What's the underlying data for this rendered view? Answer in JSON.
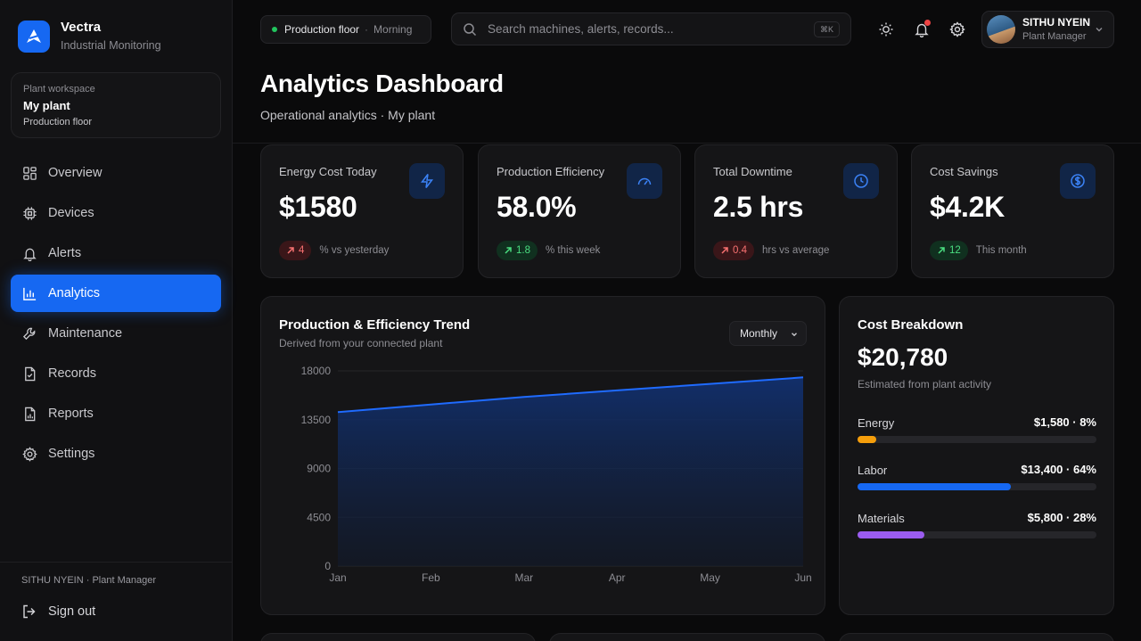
{
  "brand": {
    "name": "Vectra",
    "subtitle": "Industrial Monitoring"
  },
  "workspace": {
    "label": "Plant workspace",
    "name": "My plant",
    "floor": "Production floor"
  },
  "nav": [
    {
      "label": "Overview",
      "icon": "grid-icon",
      "active": false
    },
    {
      "label": "Devices",
      "icon": "chip-icon",
      "active": false
    },
    {
      "label": "Alerts",
      "icon": "bell-icon",
      "active": false
    },
    {
      "label": "Analytics",
      "icon": "bar-chart-icon",
      "active": true
    },
    {
      "label": "Maintenance",
      "icon": "wrench-icon",
      "active": false
    },
    {
      "label": "Records",
      "icon": "file-check-icon",
      "active": false
    },
    {
      "label": "Reports",
      "icon": "file-chart-icon",
      "active": false
    },
    {
      "label": "Settings",
      "icon": "gear-icon",
      "active": false
    }
  ],
  "sidebar_footer": {
    "user": "SITHU NYEIN · Plant Manager",
    "signout": "Sign out"
  },
  "topbar": {
    "location": "Production floor",
    "separator": "·",
    "shift": "Morning",
    "search_placeholder": "Search machines, alerts, records...",
    "search_shortcut": "⌘K",
    "user_name": "SITHU NYEIN",
    "user_role": "Plant Manager"
  },
  "page": {
    "title": "Analytics Dashboard",
    "subtitle": "Operational analytics · My plant"
  },
  "kpis": [
    {
      "label": "Energy Cost Today",
      "value": "$1580",
      "change": "4",
      "direction": "up",
      "tone": "red",
      "change_label": "% vs yesterday",
      "icon": "lightning-icon"
    },
    {
      "label": "Production Efficiency",
      "value": "58.0%",
      "change": "1.8",
      "direction": "up",
      "tone": "green",
      "change_label": "% this week",
      "icon": "gauge-icon"
    },
    {
      "label": "Total Downtime",
      "value": "2.5 hrs",
      "change": "0.4",
      "direction": "up",
      "tone": "red",
      "change_label": "hrs vs average",
      "icon": "clock-icon"
    },
    {
      "label": "Cost Savings",
      "value": "$4.2K",
      "change": "12",
      "direction": "up",
      "tone": "green",
      "change_label": "This month",
      "icon": "dollar-circle-icon"
    }
  ],
  "trend": {
    "title": "Production & Efficiency Trend",
    "subtitle": "Derived from your connected plant",
    "period": "Monthly"
  },
  "chart_data": {
    "type": "area",
    "x": [
      "Jan",
      "Feb",
      "Mar",
      "Apr",
      "May",
      "Jun"
    ],
    "series": [
      {
        "values": [
          14200,
          14900,
          15600,
          16200,
          16800,
          17400
        ]
      }
    ],
    "yticks": [
      0,
      4500,
      9000,
      13500,
      18000
    ],
    "ylim": [
      0,
      18000
    ],
    "grid": true,
    "colors": {
      "line": "#1f6bff",
      "fill_top": "#12306e",
      "fill_bottom": "#121a2b"
    }
  },
  "cost": {
    "title": "Cost Breakdown",
    "total": "$20,780",
    "subtitle": "Estimated from plant activity",
    "items": [
      {
        "label": "Energy",
        "value": "$1,580 · 8%",
        "percent": 8,
        "color": "#f59e0b"
      },
      {
        "label": "Labor",
        "value": "$13,400 · 64%",
        "percent": 64,
        "color": "#1668f2"
      },
      {
        "label": "Materials",
        "value": "$5,800 · 28%",
        "percent": 28,
        "color": "#9b5cf0"
      }
    ]
  },
  "colors": {
    "accent": "#1668f2",
    "background": "#0a0a0b",
    "card": "#151517",
    "positive": "#4ade80",
    "negative": "#f87171"
  }
}
